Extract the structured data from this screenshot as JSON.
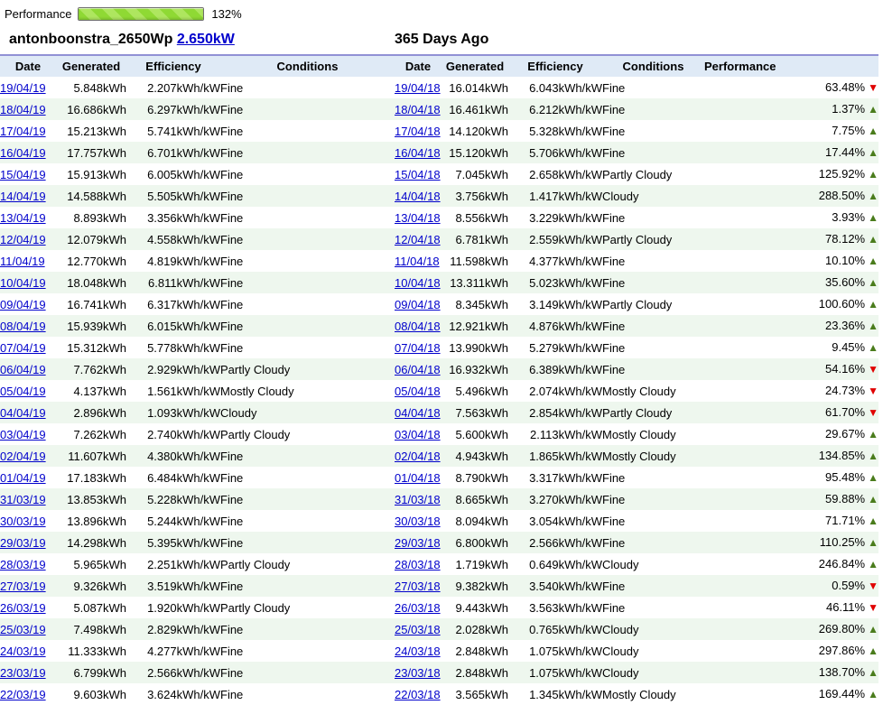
{
  "progress": {
    "label": "Performance",
    "value": "132%",
    "fill_percent": 100
  },
  "site_title": {
    "name": "antonboonstra_2650Wp",
    "capacity_link": "2.650kW"
  },
  "comparison_title": "365 Days Ago",
  "headers": {
    "date": "Date",
    "generated": "Generated",
    "efficiency": "Efficiency",
    "conditions": "Conditions",
    "performance": "Performance"
  },
  "icons": {
    "up_arrow": "▲",
    "down_arrow": "▼"
  },
  "colors": {
    "link_blue": "#0000cc",
    "header_bg": "#dfeaf6",
    "header_top_line": "#9191d5",
    "alt_row_green": "#eef7ee",
    "up_green": "#4a7c1c",
    "down_red": "#e00000",
    "bar_green": "#8fd934"
  },
  "rows": [
    {
      "left": {
        "date": "19/04/19",
        "generated": "5.848kWh",
        "efficiency": "2.207kWh/kW",
        "conditions": "Fine"
      },
      "right": {
        "date": "19/04/18",
        "generated": "16.014kWh",
        "efficiency": "6.043kWh/kW",
        "conditions": "Fine"
      },
      "performance": {
        "value": "63.48%",
        "direction": "down"
      }
    },
    {
      "left": {
        "date": "18/04/19",
        "generated": "16.686kWh",
        "efficiency": "6.297kWh/kW",
        "conditions": "Fine"
      },
      "right": {
        "date": "18/04/18",
        "generated": "16.461kWh",
        "efficiency": "6.212kWh/kW",
        "conditions": "Fine"
      },
      "performance": {
        "value": "1.37%",
        "direction": "up"
      }
    },
    {
      "left": {
        "date": "17/04/19",
        "generated": "15.213kWh",
        "efficiency": "5.741kWh/kW",
        "conditions": "Fine"
      },
      "right": {
        "date": "17/04/18",
        "generated": "14.120kWh",
        "efficiency": "5.328kWh/kW",
        "conditions": "Fine"
      },
      "performance": {
        "value": "7.75%",
        "direction": "up"
      }
    },
    {
      "left": {
        "date": "16/04/19",
        "generated": "17.757kWh",
        "efficiency": "6.701kWh/kW",
        "conditions": "Fine"
      },
      "right": {
        "date": "16/04/18",
        "generated": "15.120kWh",
        "efficiency": "5.706kWh/kW",
        "conditions": "Fine"
      },
      "performance": {
        "value": "17.44%",
        "direction": "up"
      }
    },
    {
      "left": {
        "date": "15/04/19",
        "generated": "15.913kWh",
        "efficiency": "6.005kWh/kW",
        "conditions": "Fine"
      },
      "right": {
        "date": "15/04/18",
        "generated": "7.045kWh",
        "efficiency": "2.658kWh/kW",
        "conditions": "Partly Cloudy"
      },
      "performance": {
        "value": "125.92%",
        "direction": "up"
      }
    },
    {
      "left": {
        "date": "14/04/19",
        "generated": "14.588kWh",
        "efficiency": "5.505kWh/kW",
        "conditions": "Fine"
      },
      "right": {
        "date": "14/04/18",
        "generated": "3.756kWh",
        "efficiency": "1.417kWh/kW",
        "conditions": "Cloudy"
      },
      "performance": {
        "value": "288.50%",
        "direction": "up"
      }
    },
    {
      "left": {
        "date": "13/04/19",
        "generated": "8.893kWh",
        "efficiency": "3.356kWh/kW",
        "conditions": "Fine"
      },
      "right": {
        "date": "13/04/18",
        "generated": "8.556kWh",
        "efficiency": "3.229kWh/kW",
        "conditions": "Fine"
      },
      "performance": {
        "value": "3.93%",
        "direction": "up"
      }
    },
    {
      "left": {
        "date": "12/04/19",
        "generated": "12.079kWh",
        "efficiency": "4.558kWh/kW",
        "conditions": "Fine"
      },
      "right": {
        "date": "12/04/18",
        "generated": "6.781kWh",
        "efficiency": "2.559kWh/kW",
        "conditions": "Partly Cloudy"
      },
      "performance": {
        "value": "78.12%",
        "direction": "up"
      }
    },
    {
      "left": {
        "date": "11/04/19",
        "generated": "12.770kWh",
        "efficiency": "4.819kWh/kW",
        "conditions": "Fine"
      },
      "right": {
        "date": "11/04/18",
        "generated": "11.598kWh",
        "efficiency": "4.377kWh/kW",
        "conditions": "Fine"
      },
      "performance": {
        "value": "10.10%",
        "direction": "up"
      }
    },
    {
      "left": {
        "date": "10/04/19",
        "generated": "18.048kWh",
        "efficiency": "6.811kWh/kW",
        "conditions": "Fine"
      },
      "right": {
        "date": "10/04/18",
        "generated": "13.311kWh",
        "efficiency": "5.023kWh/kW",
        "conditions": "Fine"
      },
      "performance": {
        "value": "35.60%",
        "direction": "up"
      }
    },
    {
      "left": {
        "date": "09/04/19",
        "generated": "16.741kWh",
        "efficiency": "6.317kWh/kW",
        "conditions": "Fine"
      },
      "right": {
        "date": "09/04/18",
        "generated": "8.345kWh",
        "efficiency": "3.149kWh/kW",
        "conditions": "Partly Cloudy"
      },
      "performance": {
        "value": "100.60%",
        "direction": "up"
      }
    },
    {
      "left": {
        "date": "08/04/19",
        "generated": "15.939kWh",
        "efficiency": "6.015kWh/kW",
        "conditions": "Fine"
      },
      "right": {
        "date": "08/04/18",
        "generated": "12.921kWh",
        "efficiency": "4.876kWh/kW",
        "conditions": "Fine"
      },
      "performance": {
        "value": "23.36%",
        "direction": "up"
      }
    },
    {
      "left": {
        "date": "07/04/19",
        "generated": "15.312kWh",
        "efficiency": "5.778kWh/kW",
        "conditions": "Fine"
      },
      "right": {
        "date": "07/04/18",
        "generated": "13.990kWh",
        "efficiency": "5.279kWh/kW",
        "conditions": "Fine"
      },
      "performance": {
        "value": "9.45%",
        "direction": "up"
      }
    },
    {
      "left": {
        "date": "06/04/19",
        "generated": "7.762kWh",
        "efficiency": "2.929kWh/kW",
        "conditions": "Partly Cloudy"
      },
      "right": {
        "date": "06/04/18",
        "generated": "16.932kWh",
        "efficiency": "6.389kWh/kW",
        "conditions": "Fine"
      },
      "performance": {
        "value": "54.16%",
        "direction": "down"
      }
    },
    {
      "left": {
        "date": "05/04/19",
        "generated": "4.137kWh",
        "efficiency": "1.561kWh/kW",
        "conditions": "Mostly Cloudy"
      },
      "right": {
        "date": "05/04/18",
        "generated": "5.496kWh",
        "efficiency": "2.074kWh/kW",
        "conditions": "Mostly Cloudy"
      },
      "performance": {
        "value": "24.73%",
        "direction": "down"
      }
    },
    {
      "left": {
        "date": "04/04/19",
        "generated": "2.896kWh",
        "efficiency": "1.093kWh/kW",
        "conditions": "Cloudy"
      },
      "right": {
        "date": "04/04/18",
        "generated": "7.563kWh",
        "efficiency": "2.854kWh/kW",
        "conditions": "Partly Cloudy"
      },
      "performance": {
        "value": "61.70%",
        "direction": "down"
      }
    },
    {
      "left": {
        "date": "03/04/19",
        "generated": "7.262kWh",
        "efficiency": "2.740kWh/kW",
        "conditions": "Partly Cloudy"
      },
      "right": {
        "date": "03/04/18",
        "generated": "5.600kWh",
        "efficiency": "2.113kWh/kW",
        "conditions": "Mostly Cloudy"
      },
      "performance": {
        "value": "29.67%",
        "direction": "up"
      }
    },
    {
      "left": {
        "date": "02/04/19",
        "generated": "11.607kWh",
        "efficiency": "4.380kWh/kW",
        "conditions": "Fine"
      },
      "right": {
        "date": "02/04/18",
        "generated": "4.943kWh",
        "efficiency": "1.865kWh/kW",
        "conditions": "Mostly Cloudy"
      },
      "performance": {
        "value": "134.85%",
        "direction": "up"
      }
    },
    {
      "left": {
        "date": "01/04/19",
        "generated": "17.183kWh",
        "efficiency": "6.484kWh/kW",
        "conditions": "Fine"
      },
      "right": {
        "date": "01/04/18",
        "generated": "8.790kWh",
        "efficiency": "3.317kWh/kW",
        "conditions": "Fine"
      },
      "performance": {
        "value": "95.48%",
        "direction": "up"
      }
    },
    {
      "left": {
        "date": "31/03/19",
        "generated": "13.853kWh",
        "efficiency": "5.228kWh/kW",
        "conditions": "Fine"
      },
      "right": {
        "date": "31/03/18",
        "generated": "8.665kWh",
        "efficiency": "3.270kWh/kW",
        "conditions": "Fine"
      },
      "performance": {
        "value": "59.88%",
        "direction": "up"
      }
    },
    {
      "left": {
        "date": "30/03/19",
        "generated": "13.896kWh",
        "efficiency": "5.244kWh/kW",
        "conditions": "Fine"
      },
      "right": {
        "date": "30/03/18",
        "generated": "8.094kWh",
        "efficiency": "3.054kWh/kW",
        "conditions": "Fine"
      },
      "performance": {
        "value": "71.71%",
        "direction": "up"
      }
    },
    {
      "left": {
        "date": "29/03/19",
        "generated": "14.298kWh",
        "efficiency": "5.395kWh/kW",
        "conditions": "Fine"
      },
      "right": {
        "date": "29/03/18",
        "generated": "6.800kWh",
        "efficiency": "2.566kWh/kW",
        "conditions": "Fine"
      },
      "performance": {
        "value": "110.25%",
        "direction": "up"
      }
    },
    {
      "left": {
        "date": "28/03/19",
        "generated": "5.965kWh",
        "efficiency": "2.251kWh/kW",
        "conditions": "Partly Cloudy"
      },
      "right": {
        "date": "28/03/18",
        "generated": "1.719kWh",
        "efficiency": "0.649kWh/kW",
        "conditions": "Cloudy"
      },
      "performance": {
        "value": "246.84%",
        "direction": "up"
      }
    },
    {
      "left": {
        "date": "27/03/19",
        "generated": "9.326kWh",
        "efficiency": "3.519kWh/kW",
        "conditions": "Fine"
      },
      "right": {
        "date": "27/03/18",
        "generated": "9.382kWh",
        "efficiency": "3.540kWh/kW",
        "conditions": "Fine"
      },
      "performance": {
        "value": "0.59%",
        "direction": "down"
      }
    },
    {
      "left": {
        "date": "26/03/19",
        "generated": "5.087kWh",
        "efficiency": "1.920kWh/kW",
        "conditions": "Partly Cloudy"
      },
      "right": {
        "date": "26/03/18",
        "generated": "9.443kWh",
        "efficiency": "3.563kWh/kW",
        "conditions": "Fine"
      },
      "performance": {
        "value": "46.11%",
        "direction": "down"
      }
    },
    {
      "left": {
        "date": "25/03/19",
        "generated": "7.498kWh",
        "efficiency": "2.829kWh/kW",
        "conditions": "Fine"
      },
      "right": {
        "date": "25/03/18",
        "generated": "2.028kWh",
        "efficiency": "0.765kWh/kW",
        "conditions": "Cloudy"
      },
      "performance": {
        "value": "269.80%",
        "direction": "up"
      }
    },
    {
      "left": {
        "date": "24/03/19",
        "generated": "11.333kWh",
        "efficiency": "4.277kWh/kW",
        "conditions": "Fine"
      },
      "right": {
        "date": "24/03/18",
        "generated": "2.848kWh",
        "efficiency": "1.075kWh/kW",
        "conditions": "Cloudy"
      },
      "performance": {
        "value": "297.86%",
        "direction": "up"
      }
    },
    {
      "left": {
        "date": "23/03/19",
        "generated": "6.799kWh",
        "efficiency": "2.566kWh/kW",
        "conditions": "Fine"
      },
      "right": {
        "date": "23/03/18",
        "generated": "2.848kWh",
        "efficiency": "1.075kWh/kW",
        "conditions": "Cloudy"
      },
      "performance": {
        "value": "138.70%",
        "direction": "up"
      }
    },
    {
      "left": {
        "date": "22/03/19",
        "generated": "9.603kWh",
        "efficiency": "3.624kWh/kW",
        "conditions": "Fine"
      },
      "right": {
        "date": "22/03/18",
        "generated": "3.565kWh",
        "efficiency": "1.345kWh/kW",
        "conditions": "Mostly Cloudy"
      },
      "performance": {
        "value": "169.44%",
        "direction": "up"
      }
    }
  ]
}
